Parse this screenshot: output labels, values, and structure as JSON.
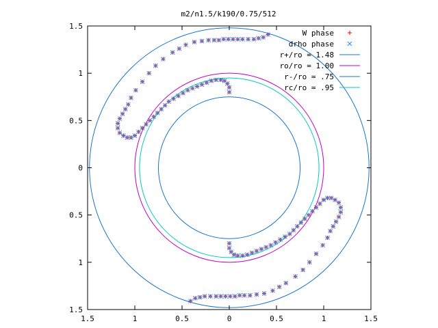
{
  "chart_data": {
    "type": "scatter",
    "title": "m2/n1.5/k190/0.75/512",
    "xlabel": "",
    "ylabel": "",
    "xlim": [
      -1.5,
      1.5
    ],
    "ylim": [
      -1.5,
      1.5
    ],
    "grid": false,
    "legend_position": "top-right",
    "x_ticks": [
      {
        "value": -1.5,
        "label": "1.5"
      },
      {
        "value": -1.0,
        "label": "1"
      },
      {
        "value": -0.5,
        "label": "0.5"
      },
      {
        "value": 0,
        "label": "0"
      },
      {
        "value": 0.5,
        "label": "0.5"
      },
      {
        "value": 1.0,
        "label": "1"
      },
      {
        "value": 1.5,
        "label": "1.5"
      }
    ],
    "y_ticks": [
      {
        "value": 1.5,
        "label": "1.5"
      },
      {
        "value": 1.0,
        "label": "1"
      },
      {
        "value": 0.5,
        "label": "0.5"
      },
      {
        "value": 0,
        "label": "0"
      },
      {
        "value": -0.5,
        "label": "0.5"
      },
      {
        "value": -1.0,
        "label": "1"
      },
      {
        "value": -1.5,
        "label": "1.5"
      }
    ],
    "circles": [
      {
        "name": "r+/ro = 1.48",
        "r": 1.48,
        "color": "#1874cd"
      },
      {
        "name": "ro/ro = 1.00",
        "r": 1.0,
        "color": "#c000c0"
      },
      {
        "name": "r-/ro = .75",
        "r": 0.75,
        "color": "#1874cd"
      },
      {
        "name": "rc/ro = .95",
        "r": 0.95,
        "color": "#00c8c8"
      }
    ],
    "series": [
      {
        "name": "W phase",
        "marker": "plus",
        "color": "#ff0000",
        "points": [
          [
            0.41,
            1.41
          ],
          [
            0.36,
            1.38
          ],
          [
            0.31,
            1.37
          ],
          [
            0.26,
            1.36
          ],
          [
            0.2,
            1.36
          ],
          [
            0.14,
            1.36
          ],
          [
            0.09,
            1.36
          ],
          [
            0.04,
            1.36
          ],
          [
            -0.01,
            1.36
          ],
          [
            -0.06,
            1.36
          ],
          [
            -0.11,
            1.35
          ],
          [
            -0.16,
            1.35
          ],
          [
            -0.22,
            1.35
          ],
          [
            -0.29,
            1.34
          ],
          [
            -0.37,
            1.33
          ],
          [
            -0.46,
            1.3
          ],
          [
            -0.53,
            1.26
          ],
          [
            -0.6,
            1.22
          ],
          [
            -0.7,
            1.15
          ],
          [
            -0.78,
            1.08
          ],
          [
            -0.85,
            1.0
          ],
          [
            -0.92,
            0.91
          ],
          [
            -0.99,
            0.82
          ],
          [
            -1.04,
            0.74
          ],
          [
            -1.07,
            0.67
          ],
          [
            -1.1,
            0.62
          ],
          [
            -1.13,
            0.57
          ],
          [
            -1.16,
            0.52
          ],
          [
            -1.18,
            0.47
          ],
          [
            -1.18,
            0.42
          ],
          [
            -1.16,
            0.37
          ],
          [
            -1.12,
            0.34
          ],
          [
            -1.08,
            0.32
          ],
          [
            -1.04,
            0.32
          ],
          [
            -1.0,
            0.34
          ],
          [
            -0.96,
            0.38
          ],
          [
            -0.92,
            0.42
          ],
          [
            -0.88,
            0.46
          ],
          [
            -0.84,
            0.5
          ],
          [
            -0.8,
            0.54
          ],
          [
            -0.76,
            0.58
          ],
          [
            -0.72,
            0.62
          ],
          [
            -0.68,
            0.66
          ],
          [
            -0.64,
            0.7
          ],
          [
            -0.59,
            0.73
          ],
          [
            -0.54,
            0.76
          ],
          [
            -0.49,
            0.79
          ],
          [
            -0.44,
            0.82
          ],
          [
            -0.39,
            0.84
          ],
          [
            -0.34,
            0.86
          ],
          [
            -0.29,
            0.88
          ],
          [
            -0.24,
            0.9
          ],
          [
            -0.19,
            0.92
          ],
          [
            -0.14,
            0.93
          ],
          [
            -0.09,
            0.93
          ],
          [
            -0.05,
            0.92
          ],
          [
            -0.02,
            0.89
          ],
          [
            0.0,
            0.85
          ],
          [
            0.0,
            0.8
          ],
          [
            -0.41,
            -1.41
          ],
          [
            -0.36,
            -1.38
          ],
          [
            -0.31,
            -1.37
          ],
          [
            -0.26,
            -1.36
          ],
          [
            -0.2,
            -1.36
          ],
          [
            -0.14,
            -1.36
          ],
          [
            -0.09,
            -1.36
          ],
          [
            -0.04,
            -1.36
          ],
          [
            0.01,
            -1.36
          ],
          [
            0.06,
            -1.36
          ],
          [
            0.11,
            -1.35
          ],
          [
            0.16,
            -1.35
          ],
          [
            0.22,
            -1.35
          ],
          [
            0.29,
            -1.34
          ],
          [
            0.37,
            -1.33
          ],
          [
            0.46,
            -1.3
          ],
          [
            0.53,
            -1.26
          ],
          [
            0.6,
            -1.22
          ],
          [
            0.7,
            -1.15
          ],
          [
            0.78,
            -1.08
          ],
          [
            0.85,
            -1.0
          ],
          [
            0.92,
            -0.91
          ],
          [
            0.99,
            -0.82
          ],
          [
            1.04,
            -0.74
          ],
          [
            1.07,
            -0.67
          ],
          [
            1.1,
            -0.62
          ],
          [
            1.13,
            -0.57
          ],
          [
            1.16,
            -0.52
          ],
          [
            1.18,
            -0.47
          ],
          [
            1.18,
            -0.42
          ],
          [
            1.16,
            -0.37
          ],
          [
            1.12,
            -0.34
          ],
          [
            1.08,
            -0.32
          ],
          [
            1.04,
            -0.32
          ],
          [
            1.0,
            -0.34
          ],
          [
            0.96,
            -0.38
          ],
          [
            0.92,
            -0.42
          ],
          [
            0.88,
            -0.46
          ],
          [
            0.84,
            -0.5
          ],
          [
            0.8,
            -0.54
          ],
          [
            0.76,
            -0.58
          ],
          [
            0.72,
            -0.62
          ],
          [
            0.68,
            -0.66
          ],
          [
            0.64,
            -0.7
          ],
          [
            0.59,
            -0.73
          ],
          [
            0.54,
            -0.76
          ],
          [
            0.49,
            -0.79
          ],
          [
            0.44,
            -0.82
          ],
          [
            0.39,
            -0.84
          ],
          [
            0.34,
            -0.86
          ],
          [
            0.29,
            -0.88
          ],
          [
            0.24,
            -0.9
          ],
          [
            0.19,
            -0.92
          ],
          [
            0.14,
            -0.93
          ],
          [
            0.09,
            -0.93
          ],
          [
            0.05,
            -0.92
          ],
          [
            0.02,
            -0.89
          ],
          [
            0.0,
            -0.85
          ],
          [
            0.0,
            -0.8
          ]
        ]
      },
      {
        "name": "drho phase",
        "marker": "cross",
        "color": "#1e90ff",
        "points": [
          [
            0.41,
            1.41
          ],
          [
            0.36,
            1.38
          ],
          [
            0.31,
            1.37
          ],
          [
            0.26,
            1.36
          ],
          [
            0.2,
            1.36
          ],
          [
            0.14,
            1.36
          ],
          [
            0.09,
            1.36
          ],
          [
            0.04,
            1.36
          ],
          [
            -0.01,
            1.36
          ],
          [
            -0.06,
            1.36
          ],
          [
            -0.11,
            1.35
          ],
          [
            -0.16,
            1.35
          ],
          [
            -0.22,
            1.35
          ],
          [
            -0.29,
            1.34
          ],
          [
            -0.37,
            1.33
          ],
          [
            -0.46,
            1.3
          ],
          [
            -0.53,
            1.26
          ],
          [
            -0.6,
            1.22
          ],
          [
            -0.7,
            1.15
          ],
          [
            -0.78,
            1.08
          ],
          [
            -0.85,
            1.0
          ],
          [
            -0.92,
            0.91
          ],
          [
            -0.99,
            0.82
          ],
          [
            -1.04,
            0.74
          ],
          [
            -1.07,
            0.67
          ],
          [
            -1.1,
            0.62
          ],
          [
            -1.13,
            0.57
          ],
          [
            -1.16,
            0.52
          ],
          [
            -1.18,
            0.47
          ],
          [
            -1.18,
            0.42
          ],
          [
            -1.16,
            0.37
          ],
          [
            -1.12,
            0.34
          ],
          [
            -1.08,
            0.32
          ],
          [
            -1.04,
            0.32
          ],
          [
            -1.0,
            0.34
          ],
          [
            -0.96,
            0.38
          ],
          [
            -0.92,
            0.42
          ],
          [
            -0.88,
            0.46
          ],
          [
            -0.84,
            0.5
          ],
          [
            -0.8,
            0.54
          ],
          [
            -0.76,
            0.58
          ],
          [
            -0.72,
            0.62
          ],
          [
            -0.68,
            0.66
          ],
          [
            -0.64,
            0.7
          ],
          [
            -0.59,
            0.73
          ],
          [
            -0.54,
            0.76
          ],
          [
            -0.49,
            0.79
          ],
          [
            -0.44,
            0.82
          ],
          [
            -0.39,
            0.84
          ],
          [
            -0.34,
            0.86
          ],
          [
            -0.29,
            0.88
          ],
          [
            -0.24,
            0.9
          ],
          [
            -0.19,
            0.92
          ],
          [
            -0.14,
            0.93
          ],
          [
            -0.09,
            0.93
          ],
          [
            -0.05,
            0.92
          ],
          [
            -0.02,
            0.89
          ],
          [
            0.0,
            0.85
          ],
          [
            0.0,
            0.8
          ],
          [
            -0.41,
            -1.41
          ],
          [
            -0.36,
            -1.38
          ],
          [
            -0.31,
            -1.37
          ],
          [
            -0.26,
            -1.36
          ],
          [
            -0.2,
            -1.36
          ],
          [
            -0.14,
            -1.36
          ],
          [
            -0.09,
            -1.36
          ],
          [
            -0.04,
            -1.36
          ],
          [
            0.01,
            -1.36
          ],
          [
            0.06,
            -1.36
          ],
          [
            0.11,
            -1.35
          ],
          [
            0.16,
            -1.35
          ],
          [
            0.22,
            -1.35
          ],
          [
            0.29,
            -1.34
          ],
          [
            0.37,
            -1.33
          ],
          [
            0.46,
            -1.3
          ],
          [
            0.53,
            -1.26
          ],
          [
            0.6,
            -1.22
          ],
          [
            0.7,
            -1.15
          ],
          [
            0.78,
            -1.08
          ],
          [
            0.85,
            -1.0
          ],
          [
            0.92,
            -0.91
          ],
          [
            0.99,
            -0.82
          ],
          [
            1.04,
            -0.74
          ],
          [
            1.07,
            -0.67
          ],
          [
            1.1,
            -0.62
          ],
          [
            1.13,
            -0.57
          ],
          [
            1.16,
            -0.52
          ],
          [
            1.18,
            -0.47
          ],
          [
            1.18,
            -0.42
          ],
          [
            1.16,
            -0.37
          ],
          [
            1.12,
            -0.34
          ],
          [
            1.08,
            -0.32
          ],
          [
            1.04,
            -0.32
          ],
          [
            1.0,
            -0.34
          ],
          [
            0.96,
            -0.38
          ],
          [
            0.92,
            -0.42
          ],
          [
            0.88,
            -0.46
          ],
          [
            0.84,
            -0.5
          ],
          [
            0.8,
            -0.54
          ],
          [
            0.76,
            -0.58
          ],
          [
            0.72,
            -0.62
          ],
          [
            0.68,
            -0.66
          ],
          [
            0.64,
            -0.7
          ],
          [
            0.59,
            -0.73
          ],
          [
            0.54,
            -0.76
          ],
          [
            0.49,
            -0.79
          ],
          [
            0.44,
            -0.82
          ],
          [
            0.39,
            -0.84
          ],
          [
            0.34,
            -0.86
          ],
          [
            0.29,
            -0.88
          ],
          [
            0.24,
            -0.9
          ],
          [
            0.19,
            -0.92
          ],
          [
            0.14,
            -0.93
          ],
          [
            0.09,
            -0.93
          ],
          [
            0.05,
            -0.92
          ],
          [
            0.02,
            -0.89
          ],
          [
            0.0,
            -0.85
          ],
          [
            0.0,
            -0.8
          ]
        ]
      }
    ]
  }
}
